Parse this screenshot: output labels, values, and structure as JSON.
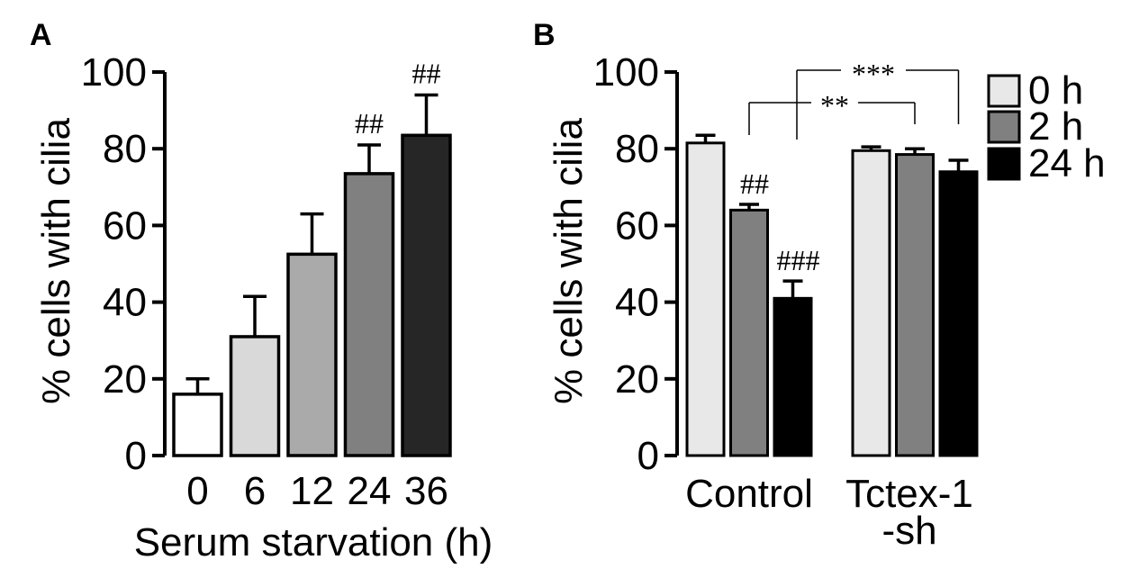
{
  "chart_data": [
    {
      "panel": "A",
      "type": "bar",
      "ylabel": "% cells with cilia",
      "xlabel": "Serum starvation (h)",
      "ylim": [
        0,
        100
      ],
      "yticks": [
        "0",
        "20",
        "40",
        "60",
        "80",
        "100"
      ],
      "categories": [
        "0",
        "6",
        "12",
        "24",
        "36"
      ],
      "values": [
        16,
        31,
        52.5,
        73.5,
        83.5
      ],
      "errors": [
        4,
        10.5,
        10.5,
        7.5,
        10.5
      ],
      "colors": [
        "#ffffff",
        "#d9d9d9",
        "#aaaaaa",
        "#808080",
        "#262626"
      ],
      "annotations": [
        "",
        "",
        "",
        "##",
        "##"
      ]
    },
    {
      "panel": "B",
      "type": "bar",
      "ylabel": "% cells with cilia",
      "ylim": [
        0,
        100
      ],
      "yticks": [
        "0",
        "20",
        "40",
        "60",
        "80",
        "100"
      ],
      "groups": [
        {
          "label_lines": [
            "Control"
          ]
        },
        {
          "label_lines": [
            "Tctex-1",
            "-sh"
          ]
        }
      ],
      "series": [
        {
          "name": "0 h",
          "color": "#e8e8e8",
          "values": [
            81.5,
            79.5
          ],
          "errors": [
            2,
            1
          ],
          "annotations": [
            "",
            ""
          ]
        },
        {
          "name": "2 h",
          "color": "#808080",
          "values": [
            64,
            78.5
          ],
          "errors": [
            1.5,
            1.5
          ],
          "annotations": [
            "##",
            ""
          ]
        },
        {
          "name": "24 h",
          "color": "#000000",
          "values": [
            41,
            74
          ],
          "errors": [
            4.5,
            3
          ],
          "annotations": [
            "###",
            ""
          ]
        }
      ],
      "significance": [
        {
          "label": "**"
        },
        {
          "label": "***"
        }
      ]
    }
  ]
}
